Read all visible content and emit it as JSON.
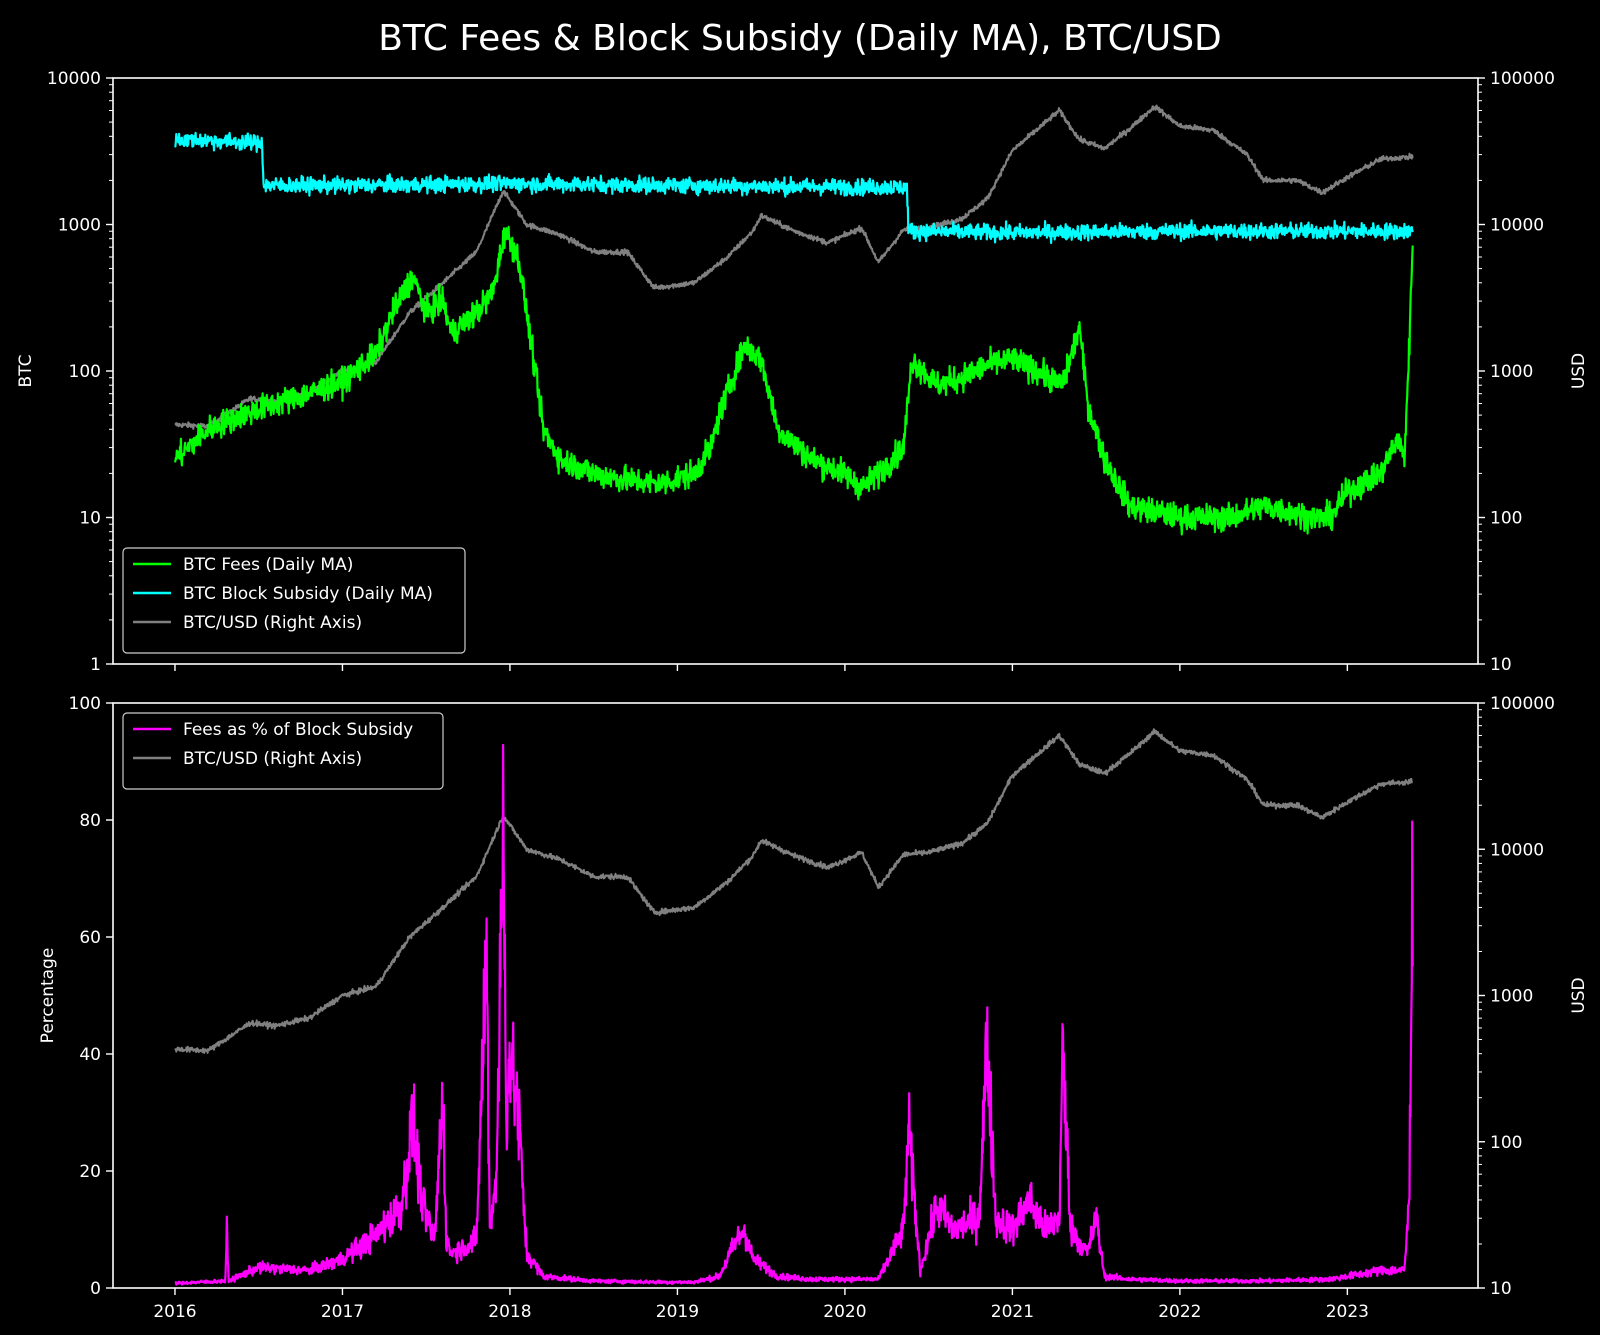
{
  "chart_data": {
    "title": "BTC Fees & Block Subsidy (Daily MA), BTC/USD",
    "background": "#000000",
    "x_axis": {
      "range": [
        2015.63,
        2023.78
      ],
      "tick_labels": [
        "2016",
        "2017",
        "2018",
        "2019",
        "2020",
        "2021",
        "2022",
        "2023"
      ]
    },
    "panels": [
      {
        "type": "line",
        "ylabel": "BTC",
        "yscale": "log",
        "ylim": [
          1,
          10000
        ],
        "ytick_labels": [
          "1",
          "10",
          "100",
          "1000",
          "10000"
        ],
        "y2label": "USD",
        "y2scale": "log",
        "y2lim": [
          10,
          100000
        ],
        "y2tick_labels": [
          "10",
          "100",
          "1000",
          "10000",
          "100000"
        ],
        "legend": {
          "location": "lower-left",
          "entries": [
            "BTC Fees (Daily MA)",
            "BTC Block Subsidy (Daily MA)",
            "BTC/USD (Right Axis)"
          ]
        },
        "series": [
          {
            "name": "BTC Fees (Daily MA)",
            "color": "#00ff00",
            "axis": "left",
            "noise": 0.09,
            "x": [
              2016.0,
              2016.2,
              2016.3,
              2016.5,
              2016.6,
              2016.8,
              2017.0,
              2017.2,
              2017.3,
              2017.42,
              2017.5,
              2017.6,
              2017.65,
              2017.8,
              2017.9,
              2017.97,
              2018.05,
              2018.1,
              2018.2,
              2018.3,
              2018.5,
              2018.7,
              2018.9,
              2019.1,
              2019.2,
              2019.25,
              2019.4,
              2019.5,
              2019.6,
              2019.8,
              2020.0,
              2020.1,
              2020.2,
              2020.35,
              2020.4,
              2020.55,
              2020.7,
              2020.85,
              2021.0,
              2021.15,
              2021.3,
              2021.4,
              2021.45,
              2021.55,
              2021.7,
              2022.0,
              2022.3,
              2022.5,
              2022.8,
              2022.9,
              2023.0,
              2023.2,
              2023.3,
              2023.34,
              2023.37,
              2023.39
            ],
            "y": [
              25,
              40,
              45,
              55,
              60,
              70,
              85,
              130,
              250,
              450,
              250,
              300,
              180,
              250,
              350,
              900,
              600,
              250,
              40,
              25,
              20,
              18,
              17,
              20,
              30,
              50,
              150,
              120,
              40,
              25,
              20,
              16,
              20,
              30,
              120,
              80,
              90,
              110,
              120,
              100,
              80,
              200,
              60,
              25,
              12,
              10,
              10,
              12,
              10,
              10,
              15,
              20,
              35,
              25,
              150,
              750
            ]
          },
          {
            "name": "BTC Block Subsidy (Daily MA)",
            "color": "#00ffff",
            "axis": "left",
            "noise": 0.055,
            "x": [
              2016.0,
              2016.2,
              2016.52,
              2016.53,
              2017.0,
              2018.0,
              2019.0,
              2020.0,
              2020.37,
              2020.38,
              2021.0,
              2022.0,
              2023.0,
              2023.39
            ],
            "y": [
              3800,
              3750,
              3600,
              1850,
              1850,
              1900,
              1850,
              1800,
              1800,
              900,
              880,
              900,
              900,
              900
            ]
          },
          {
            "name": "BTC/USD (Right Axis)",
            "color": "#808080",
            "axis": "right",
            "noise": 0.018,
            "x": [
              2016.0,
              2016.2,
              2016.45,
              2016.6,
              2016.8,
              2017.0,
              2017.2,
              2017.4,
              2017.6,
              2017.8,
              2017.96,
              2018.1,
              2018.3,
              2018.5,
              2018.7,
              2018.86,
              2018.95,
              2019.1,
              2019.3,
              2019.45,
              2019.5,
              2019.7,
              2019.9,
              2020.1,
              2020.2,
              2020.35,
              2020.5,
              2020.7,
              2020.85,
              2021.0,
              2021.1,
              2021.28,
              2021.4,
              2021.55,
              2021.7,
              2021.85,
              2022.0,
              2022.2,
              2022.4,
              2022.5,
              2022.7,
              2022.85,
              2023.0,
              2023.2,
              2023.39
            ],
            "y": [
              430,
              420,
              650,
              620,
              700,
              1000,
              1150,
              2500,
              4000,
              6500,
              17000,
              10000,
              8500,
              6500,
              6500,
              3700,
              3800,
              4000,
              6000,
              9000,
              11500,
              9000,
              7500,
              9500,
              5500,
              9200,
              9500,
              11000,
              15000,
              32000,
              40000,
              60000,
              38000,
              33000,
              45000,
              64000,
              47000,
              44000,
              30000,
              20000,
              20000,
              16500,
              21000,
              28000,
              29000
            ]
          }
        ]
      },
      {
        "type": "line",
        "ylabel": "Percentage",
        "yscale": "linear",
        "ylim": [
          0,
          100
        ],
        "ytick_labels": [
          "0",
          "20",
          "40",
          "60",
          "80",
          "100"
        ],
        "y2label": "USD",
        "y2scale": "log",
        "y2lim": [
          10,
          100000
        ],
        "y2tick_labels": [
          "10",
          "100",
          "1000",
          "10000",
          "100000"
        ],
        "legend": {
          "location": "upper-left",
          "entries": [
            "Fees as % of Block Subsidy",
            "BTC/USD (Right Axis)"
          ]
        },
        "series": [
          {
            "name": "Fees as % of Block Subsidy",
            "color": "#ff00ff",
            "axis": "left",
            "noise": 0.28,
            "x": [
              2016.0,
              2016.3,
              2016.31,
              2016.32,
              2016.5,
              2016.8,
              2017.0,
              2017.2,
              2017.35,
              2017.42,
              2017.48,
              2017.55,
              2017.6,
              2017.62,
              2017.65,
              2017.8,
              2017.86,
              2017.88,
              2017.92,
              2017.96,
              2017.98,
              2018.0,
              2018.05,
              2018.1,
              2018.2,
              2018.5,
              2018.9,
              2019.1,
              2019.25,
              2019.35,
              2019.4,
              2019.45,
              2019.6,
              2019.8,
              2020.2,
              2020.35,
              2020.38,
              2020.45,
              2020.55,
              2020.65,
              2020.8,
              2020.85,
              2020.9,
              2021.0,
              2021.1,
              2021.2,
              2021.28,
              2021.3,
              2021.35,
              2021.45,
              2021.5,
              2021.55,
              2021.7,
              2022.0,
              2022.5,
              2022.9,
              2023.0,
              2023.2,
              2023.34,
              2023.37,
              2023.39
            ],
            "y": [
              0.8,
              1.2,
              9.5,
              1.2,
              3.5,
              3,
              5,
              9,
              14,
              28,
              14,
              8,
              34,
              8,
              6,
              8,
              58,
              10,
              20,
              78,
              30,
              40,
              30,
              6,
              2,
              1.2,
              1,
              1,
              2,
              8,
              10,
              5,
              2,
              1.5,
              1.5,
              10,
              27,
              3,
              14,
              10,
              12,
              42,
              12,
              10,
              15,
              10,
              12,
              40,
              10,
              6,
              12,
              2,
              1.5,
              1.2,
              1.2,
              1.5,
              2,
              3,
              3,
              15,
              75
            ]
          },
          {
            "name": "BTC/USD (Right Axis)",
            "color": "#808080",
            "axis": "right",
            "noise": 0.018,
            "x": [
              2016.0,
              2016.2,
              2016.45,
              2016.6,
              2016.8,
              2017.0,
              2017.2,
              2017.4,
              2017.6,
              2017.8,
              2017.96,
              2018.1,
              2018.3,
              2018.5,
              2018.7,
              2018.86,
              2018.95,
              2019.1,
              2019.3,
              2019.45,
              2019.5,
              2019.7,
              2019.9,
              2020.1,
              2020.2,
              2020.35,
              2020.5,
              2020.7,
              2020.85,
              2021.0,
              2021.1,
              2021.28,
              2021.4,
              2021.55,
              2021.7,
              2021.85,
              2022.0,
              2022.2,
              2022.4,
              2022.5,
              2022.7,
              2022.85,
              2023.0,
              2023.2,
              2023.39
            ],
            "y": [
              430,
              420,
              650,
              620,
              700,
              1000,
              1150,
              2500,
              4000,
              6500,
              17000,
              10000,
              8500,
              6500,
              6500,
              3700,
              3800,
              4000,
              6000,
              9000,
              11500,
              9000,
              7500,
              9500,
              5500,
              9200,
              9500,
              11000,
              15000,
              32000,
              40000,
              60000,
              38000,
              33000,
              45000,
              64000,
              47000,
              44000,
              30000,
              20000,
              20000,
              16500,
              21000,
              28000,
              29000
            ]
          }
        ]
      }
    ]
  }
}
